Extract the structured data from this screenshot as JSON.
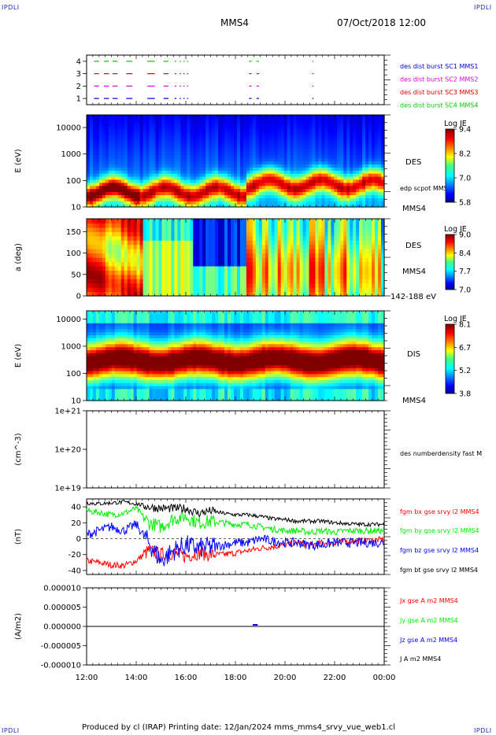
{
  "corner_labels": {
    "top_left": "IPDLI",
    "top_right": "IPDLI",
    "bottom_left": "IPDLI",
    "bottom_right": "IPDLI"
  },
  "header": {
    "spacecraft": "MMS4",
    "datetime": "07/Oct/2018 12:00"
  },
  "footer": "Produced by cl (IRAP)   Printing date: 12/Jan/2024   mms_mms4_srvy_vue_web1.cl",
  "colors": {
    "mms1": "#0000dd",
    "mms2": "#dd00dd",
    "mms3": "#dd0000",
    "mms4": "#00cc00",
    "bx": "#ff0000",
    "by": "#00ee00",
    "bz": "#0000ff",
    "bt": "#000000"
  },
  "chart_data": [
    {
      "type": "line",
      "panel": "burst availability",
      "ylim": [
        0.5,
        4.5
      ],
      "yticks": [
        "1",
        "2",
        "3",
        "4"
      ],
      "series": [
        {
          "name": "des dist burst SC1 MMS1",
          "level": 1,
          "color_key": "mms1"
        },
        {
          "name": "des dist burst SC2 MMS2",
          "level": 2,
          "color_key": "mms2"
        },
        {
          "name": "des dist burst SC3 MMS3",
          "level": 3,
          "color_key": "mms3"
        },
        {
          "name": "des dist burst SC4 MMS4",
          "level": 4,
          "color_key": "mms4"
        }
      ],
      "burst_intervals_hours": [
        [
          12.3,
          12.5
        ],
        [
          12.7,
          12.9
        ],
        [
          13.05,
          13.25
        ],
        [
          13.6,
          13.85
        ],
        [
          14.45,
          14.75
        ],
        [
          15.1,
          15.3
        ],
        [
          15.55,
          15.62
        ],
        [
          15.75,
          15.8
        ],
        [
          15.9,
          15.95
        ],
        [
          16.05,
          16.1
        ],
        [
          18.55,
          18.65
        ],
        [
          18.85,
          18.95
        ],
        [
          21.1,
          21.15
        ]
      ]
    },
    {
      "type": "heatmap",
      "panel": "electron energy spectrogram",
      "ylabel": "E (eV)",
      "yscale": "log",
      "ylim": [
        10,
        30000
      ],
      "yticks": [
        "10",
        "100",
        "1000",
        "10000"
      ],
      "right_labels": [
        "DES",
        "edp scpot MMS4",
        "MMS4"
      ],
      "colorbar": {
        "title": "Log JE",
        "ticks": [
          "9.4",
          "8.2",
          "7.0",
          "5.8"
        ],
        "range": [
          5.8,
          9.4
        ]
      }
    },
    {
      "type": "heatmap",
      "panel": "electron pitch angle",
      "ylabel": "a (deg)",
      "ylim": [
        0,
        180
      ],
      "yticks": [
        "0",
        "50",
        "100",
        "150"
      ],
      "right_labels": [
        "DES",
        "MMS4",
        "142-188 eV"
      ],
      "colorbar": {
        "title": "Log JE",
        "ticks": [
          "9.0",
          "8.4",
          "7.7",
          "7.0"
        ],
        "range": [
          7.0,
          9.0
        ]
      }
    },
    {
      "type": "heatmap",
      "panel": "ion energy spectrogram",
      "ylabel": "E (eV)",
      "yscale": "log",
      "ylim": [
        10,
        20000
      ],
      "yticks": [
        "10",
        "100",
        "1000",
        "10000"
      ],
      "right_labels": [
        "DIS",
        "MMS4"
      ],
      "colorbar": {
        "title": "Log JE",
        "ticks": [
          "8.1",
          "6.7",
          "5.2",
          "3.8"
        ],
        "range": [
          3.8,
          8.1
        ]
      }
    },
    {
      "type": "line",
      "panel": "density",
      "ylabel": "(cm^-3)",
      "yscale": "log",
      "ylim": [
        1e+19,
        1e+21
      ],
      "yticks": [
        "1e+19",
        "1e+20",
        "1e+21"
      ],
      "series": [
        {
          "name": "des numberdensity fast M",
          "values": []
        }
      ]
    },
    {
      "type": "line",
      "panel": "magnetic field",
      "ylabel": "(nT)",
      "ylim": [
        -45,
        50
      ],
      "yticks": [
        "-40",
        "-20",
        "0",
        "20",
        "40"
      ],
      "x_hours": [
        12,
        12.5,
        13,
        13.5,
        14,
        14.5,
        15,
        15.5,
        16,
        16.5,
        17,
        17.5,
        18,
        18.5,
        19,
        19.5,
        20,
        20.5,
        21,
        21.5,
        22,
        22.5,
        23,
        23.5,
        24
      ],
      "series": [
        {
          "name": "fgm bx gse srvy l2 MMS4",
          "color_key": "bx",
          "values": [
            -28,
            -30,
            -33,
            -34,
            -28,
            -15,
            -20,
            -18,
            -22,
            -18,
            -20,
            -20,
            -18,
            -15,
            -12,
            -10,
            -8,
            -5,
            -8,
            -5,
            -5,
            -3,
            -3,
            -2,
            -1
          ]
        },
        {
          "name": "fgm by gse srvy l2 MMS4",
          "color_key": "by",
          "values": [
            35,
            33,
            30,
            32,
            38,
            20,
            15,
            25,
            28,
            20,
            22,
            20,
            18,
            18,
            15,
            12,
            10,
            10,
            8,
            10,
            8,
            10,
            10,
            10,
            10
          ]
        },
        {
          "name": "fgm bz gse srvy l2 MMS4",
          "color_key": "bz",
          "values": [
            5,
            10,
            15,
            10,
            18,
            -5,
            -28,
            -15,
            -8,
            -12,
            -10,
            -8,
            -5,
            -5,
            0,
            -3,
            -5,
            -5,
            -8,
            -8,
            -5,
            -5,
            -5,
            -5,
            -5
          ]
        },
        {
          "name": "fgm bt gse srvy l2 MMS4",
          "color_key": "bt",
          "values": [
            45,
            44,
            45,
            46,
            44,
            40,
            38,
            38,
            38,
            32,
            35,
            32,
            30,
            30,
            28,
            25,
            24,
            22,
            22,
            22,
            20,
            19,
            18,
            18,
            18
          ]
        }
      ]
    },
    {
      "type": "line",
      "panel": "current density",
      "ylabel": "(A/m2)",
      "ylim": [
        -1e-05,
        1e-05
      ],
      "yticks": [
        "-0.000010",
        "-0.000005",
        "0.000000",
        "0.000005",
        "0.000010"
      ],
      "series": [
        {
          "name": "Jx gse A m2 MMS4",
          "color_key": "bx",
          "values": [
            0
          ]
        },
        {
          "name": "Jy gse A m2 MMS4",
          "color_key": "by",
          "values": [
            0
          ]
        },
        {
          "name": "Jz gse A m2 MMS4",
          "color_key": "bz",
          "values": [
            0
          ]
        },
        {
          "name": "J A m2 MMS4",
          "color_key": "bt",
          "values": [
            0
          ]
        }
      ]
    }
  ],
  "time_axis": {
    "ticks": [
      "12:00",
      "14:00",
      "16:00",
      "18:00",
      "20:00",
      "22:00",
      "00:00"
    ],
    "range_hours": [
      12,
      24
    ]
  }
}
